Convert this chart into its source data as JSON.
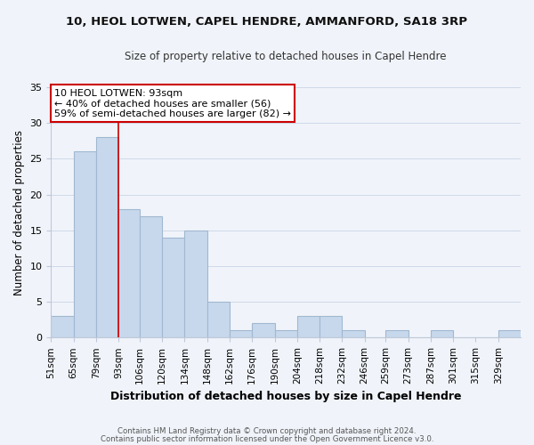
{
  "title1": "10, HEOL LOTWEN, CAPEL HENDRE, AMMANFORD, SA18 3RP",
  "title2": "Size of property relative to detached houses in Capel Hendre",
  "xlabel": "Distribution of detached houses by size in Capel Hendre",
  "ylabel": "Number of detached properties",
  "bin_labels": [
    "51sqm",
    "65sqm",
    "79sqm",
    "93sqm",
    "106sqm",
    "120sqm",
    "134sqm",
    "148sqm",
    "162sqm",
    "176sqm",
    "190sqm",
    "204sqm",
    "218sqm",
    "232sqm",
    "246sqm",
    "259sqm",
    "273sqm",
    "287sqm",
    "301sqm",
    "315sqm",
    "329sqm"
  ],
  "bin_edges": [
    51,
    65,
    79,
    93,
    106,
    120,
    134,
    148,
    162,
    176,
    190,
    204,
    218,
    232,
    246,
    259,
    273,
    287,
    301,
    315,
    329,
    343
  ],
  "counts": [
    3,
    26,
    28,
    18,
    17,
    14,
    15,
    5,
    1,
    2,
    1,
    3,
    3,
    1,
    0,
    1,
    0,
    1,
    0,
    0,
    1
  ],
  "bar_color": "#c8d8ec",
  "bar_edge_color": "#a0b8d0",
  "marker_value": 93,
  "marker_color": "#cc0000",
  "annotation_line1": "10 HEOL LOTWEN: 93sqm",
  "annotation_line2": "← 40% of detached houses are smaller (56)",
  "annotation_line3": "59% of semi-detached houses are larger (82) →",
  "annotation_box_color": "#ffffff",
  "annotation_box_edge": "#cc0000",
  "ylim": [
    0,
    35
  ],
  "yticks": [
    0,
    5,
    10,
    15,
    20,
    25,
    30,
    35
  ],
  "footer1": "Contains HM Land Registry data © Crown copyright and database right 2024.",
  "footer2": "Contains public sector information licensed under the Open Government Licence v3.0.",
  "bg_color": "#f0f4fa"
}
